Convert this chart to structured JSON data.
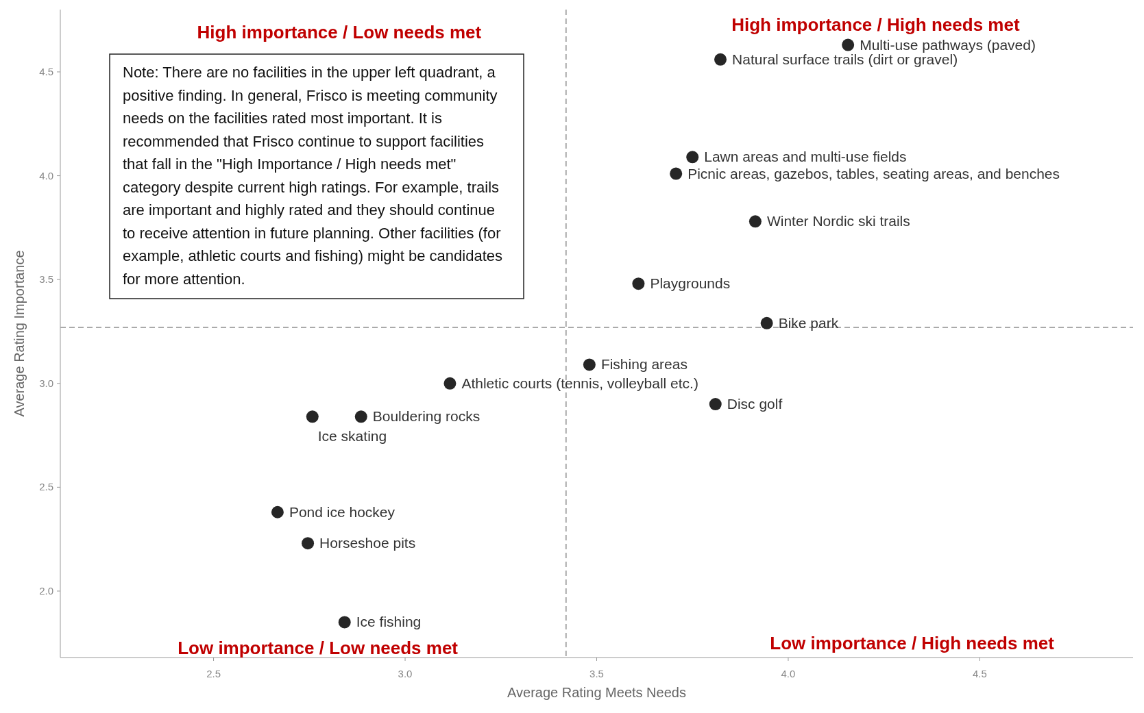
{
  "chart_data": {
    "type": "scatter",
    "xlabel": "Average Rating Meets Needs",
    "ylabel": "Average Rating Importance",
    "xlim": [
      2.1,
      4.9
    ],
    "xticks": [
      2.5,
      {
        "value": 3,
        "label": "3.0"
      },
      3.5,
      {
        "value": 4,
        "label": "4.0"
      },
      4.5
    ],
    "ylim": [
      1.68,
      4.8
    ],
    "yticks": [
      {
        "value": 2,
        "label": "2.0"
      },
      2.5,
      {
        "value": 3,
        "label": "3.0"
      },
      3.5,
      {
        "value": 4,
        "label": "4.0"
      },
      4.5
    ],
    "grid": false,
    "marker": "circle",
    "series": [
      {
        "color": "#262626",
        "x": [
          4.156,
          3.823,
          3.75,
          3.707,
          3.914,
          3.609,
          3.944,
          3.481,
          3.117,
          3.81,
          2.885,
          2.758,
          2.667,
          2.746,
          2.842
        ],
        "values": [
          4.63,
          4.56,
          4.09,
          4.01,
          3.78,
          3.48,
          3.29,
          3.09,
          3.0,
          2.9,
          2.84,
          2.84,
          2.38,
          2.23,
          1.85
        ]
      }
    ],
    "ref_lines": [
      {
        "axis": "x",
        "value": 3.42,
        "color": "#aaaaaa",
        "line_style": "dashed"
      },
      {
        "axis": "y",
        "value": 3.27,
        "color": "#aaaaaa",
        "line_style": "dashed"
      }
    ],
    "annotations": [
      "High importance / Low needs met",
      "High importance / High needs met",
      "Low importance / Low needs met",
      "Low importance / High needs met",
      "Note: There are no facilities in the upper left quadrant, a positive finding. In general, Frisco is meeting community needs on the facilities rated most important. It is recommended that Frisco continue to support facilities that fall in the \"High Importance / High needs met\" category despite current high ratings.  For example, trails are important and highly rated and they should continue to receive attention in future planning.  Other facilities (for example, athletic courts and fishing) might be candidates for more attention.",
      {
        "text": "Multi-use pathways (paved)",
        "x": 4.156,
        "y": 4.63
      },
      {
        "text": "Natural surface trails (dirt or gravel)",
        "x": 3.823,
        "y": 4.56
      },
      {
        "text": "Lawn areas and multi-use fields",
        "x": 3.75,
        "y": 4.09
      },
      {
        "text": "Picnic areas, gazebos, tables, seating areas, and benches",
        "x": 3.707,
        "y": 4.01
      },
      {
        "text": "Winter Nordic ski trails",
        "x": 3.914,
        "y": 3.78
      },
      {
        "text": "Playgrounds",
        "x": 3.609,
        "y": 3.48
      },
      {
        "text": "Bike park",
        "x": 3.944,
        "y": 3.29
      },
      {
        "text": "Fishing areas",
        "x": 3.481,
        "y": 3.09
      },
      {
        "text": "Athletic courts (tennis, volleyball etc.)",
        "x": 3.117,
        "y": 3.0
      },
      {
        "text": "Disc golf",
        "x": 3.81,
        "y": 2.9
      },
      {
        "text": "Bouldering rocks",
        "x": 2.885,
        "y": 2.84
      },
      {
        "text": "Ice skating",
        "x": 2.758,
        "y": 2.84
      },
      {
        "text": "Pond ice hockey",
        "x": 2.667,
        "y": 2.38
      },
      {
        "text": "Horseshoe pits",
        "x": 2.746,
        "y": 2.23
      },
      {
        "text": "Ice fishing",
        "x": 2.842,
        "y": 1.85
      }
    ]
  }
}
